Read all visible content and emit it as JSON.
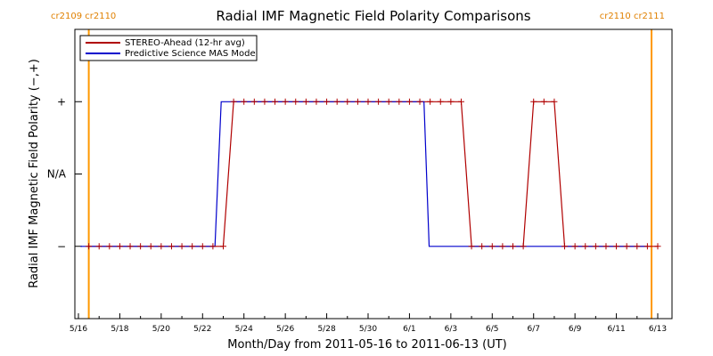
{
  "chart_data": {
    "type": "line",
    "title": "Radial IMF Magnetic Field Polarity Comparisons",
    "xlabel": "Month/Day from 2011-05-16 to 2011-06-13 (UT)",
    "ylabel": "Radial IMF Magnetic Field Polarity (−,+)",
    "x_tick_labels": [
      "5/16",
      "5/18",
      "5/20",
      "5/22",
      "5/24",
      "5/26",
      "5/28",
      "5/30",
      "6/1",
      "6/3",
      "6/5",
      "6/7",
      "6/9",
      "6/11",
      "6/13"
    ],
    "y_tick_labels": [
      "+",
      "N/A",
      "−"
    ],
    "xlim": [
      0,
      28
    ],
    "ylim": [
      -2,
      2
    ],
    "legend": {
      "placement": "top-left",
      "entries": [
        "STEREO-Ahead (12-hr avg)",
        "Predictive Science MAS Model"
      ]
    },
    "carrington_rotations": [
      {
        "day": 0.5,
        "left_label": "cr2109",
        "right_label": "cr2110",
        "side": "left"
      },
      {
        "day": 27.7,
        "left_label": "cr2110",
        "right_label": "cr2111",
        "side": "right"
      }
    ],
    "series": [
      {
        "name": "STEREO-Ahead (12-hr avg)",
        "color": "#b00000",
        "x": [
          0.5,
          1,
          1.5,
          2,
          2.5,
          3,
          3.5,
          4,
          4.5,
          5,
          5.5,
          6,
          6.5,
          7,
          7.5,
          8,
          8.5,
          9,
          9.5,
          10,
          10.5,
          11,
          11.5,
          12,
          12.5,
          13,
          13.5,
          14,
          14.5,
          15,
          15.5,
          16,
          16.5,
          17,
          17.5,
          18,
          18.5,
          19,
          19.5,
          20,
          20.5,
          21,
          21.5,
          22,
          22.5,
          23,
          23.5,
          24,
          24.5,
          25,
          25.5,
          26,
          26.5,
          27,
          27.5,
          28
        ],
        "y": [
          -1,
          -1,
          -1,
          -1,
          -1,
          -1,
          -1,
          -1,
          -1,
          -1,
          -1,
          -1,
          -1,
          -1,
          1,
          1,
          1,
          1,
          1,
          1,
          1,
          1,
          1,
          1,
          1,
          1,
          1,
          1,
          1,
          1,
          1,
          1,
          1,
          1,
          1,
          1,
          1,
          -1,
          -1,
          -1,
          -1,
          -1,
          -1,
          1,
          1,
          1,
          -1,
          -1,
          -1,
          -1,
          -1,
          -1,
          -1,
          -1,
          -1,
          -1
        ]
      },
      {
        "name": "Predictive Science MAS Model",
        "color": "#0000cc",
        "x": [
          0.1,
          6.6,
          6.9,
          16.7,
          16.95,
          27.5
        ],
        "y": [
          -1,
          -1,
          1,
          1,
          -1,
          -1
        ]
      }
    ],
    "grid": false
  },
  "colors": {
    "axes": "#000000",
    "carrington_line": "#ff9900",
    "carrington_text": "#e08000"
  }
}
